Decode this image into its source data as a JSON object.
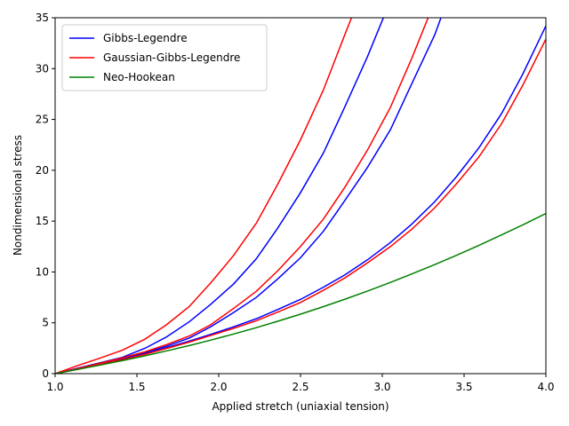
{
  "chart_data": {
    "type": "line",
    "xlabel": "Applied stretch (uniaxial tension)",
    "ylabel": "Nondimensional stress",
    "x": [
      1.0,
      1.14,
      1.27,
      1.41,
      1.55,
      1.68,
      1.82,
      1.95,
      2.09,
      2.23,
      2.36,
      2.5,
      2.64,
      2.77,
      2.91,
      3.05,
      3.18,
      3.32,
      3.45,
      3.59,
      3.73,
      3.86,
      4.0
    ],
    "series": [
      {
        "name": "Gibbs-Legendre",
        "color": "#0000ff",
        "lines": [
          [
            0,
            0.55,
            1.05,
            1.6,
            2.5,
            3.6,
            5.1,
            6.8,
            8.8,
            11.3,
            14.3,
            17.8,
            21.7,
            26.2,
            31.2,
            36.7,
            null,
            null,
            null,
            null,
            null,
            null,
            null
          ],
          [
            0,
            0.5,
            1.0,
            1.5,
            2.05,
            2.7,
            3.5,
            4.6,
            6.0,
            7.5,
            9.3,
            11.4,
            14.0,
            17.0,
            20.3,
            24.0,
            28.5,
            33.3,
            39.0,
            null,
            null,
            null,
            null
          ],
          [
            0,
            0.45,
            0.9,
            1.4,
            1.95,
            2.55,
            3.2,
            3.85,
            4.6,
            5.4,
            6.3,
            7.3,
            8.5,
            9.7,
            11.2,
            12.9,
            14.7,
            16.9,
            19.3,
            22.2,
            25.6,
            29.5,
            34.2
          ]
        ]
      },
      {
        "name": "Gaussian-Gibbs-Legendre",
        "color": "#ff0000",
        "lines": [
          [
            0,
            0.8,
            1.5,
            2.3,
            3.4,
            4.8,
            6.6,
            8.9,
            11.6,
            14.8,
            18.6,
            23.0,
            27.9,
            33.3,
            39.0,
            null,
            null,
            null,
            null,
            null,
            null,
            null,
            null
          ],
          [
            0,
            0.5,
            1.0,
            1.55,
            2.15,
            2.85,
            3.7,
            4.8,
            6.4,
            8.1,
            10.1,
            12.5,
            15.2,
            18.3,
            22.0,
            26.2,
            31.0,
            36.6,
            null,
            null,
            null,
            null,
            null
          ],
          [
            0,
            0.44,
            0.88,
            1.37,
            1.9,
            2.48,
            3.1,
            3.75,
            4.45,
            5.2,
            6.05,
            7.0,
            8.2,
            9.4,
            10.9,
            12.5,
            14.2,
            16.3,
            18.6,
            21.3,
            24.6,
            28.4,
            32.9
          ]
        ]
      },
      {
        "name": "Neo-Hookean",
        "color": "#008000",
        "lines": [
          [
            0,
            0.42,
            0.83,
            1.28,
            1.76,
            2.23,
            2.76,
            3.29,
            3.89,
            4.52,
            5.15,
            5.85,
            6.59,
            7.31,
            8.12,
            8.97,
            9.8,
            10.72,
            11.61,
            12.61,
            13.65,
            14.64,
            15.75
          ]
        ]
      }
    ],
    "xlim": [
      1.0,
      4.0
    ],
    "xticks": [
      {
        "value": 1.0,
        "label": "1.0"
      },
      {
        "value": 1.5,
        "label": "1.5"
      },
      {
        "value": 2.0,
        "label": "2.0"
      },
      {
        "value": 2.5,
        "label": "2.5"
      },
      {
        "value": 3.0,
        "label": "3.0"
      },
      {
        "value": 3.5,
        "label": "3.5"
      },
      {
        "value": 4.0,
        "label": "4.0"
      }
    ],
    "ylim": [
      0,
      35
    ],
    "yticks": [
      0,
      5,
      10,
      15,
      20,
      25,
      30,
      35
    ],
    "grid": false,
    "legend": "upper-left"
  }
}
